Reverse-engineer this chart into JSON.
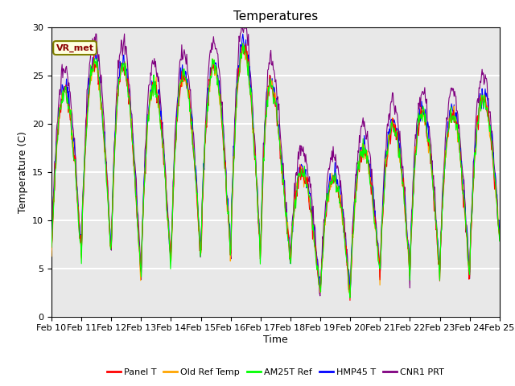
{
  "title": "Temperatures",
  "xlabel": "Time",
  "ylabel": "Temperature (C)",
  "ylim": [
    0,
    30
  ],
  "xlim": [
    0,
    15
  ],
  "x_tick_labels": [
    "Feb 10",
    "Feb 11",
    "Feb 12",
    "Feb 13",
    "Feb 14",
    "Feb 15",
    "Feb 16",
    "Feb 17",
    "Feb 18",
    "Feb 19",
    "Feb 20",
    "Feb 21",
    "Feb 22",
    "Feb 23",
    "Feb 24",
    "Feb 25"
  ],
  "annotation_text": "VR_met",
  "series_colors": [
    "red",
    "orange",
    "lime",
    "blue",
    "purple"
  ],
  "series_labels": [
    "Panel T",
    "Old Ref Temp",
    "AM25T Ref",
    "HMP45 T",
    "CNR1 PRT"
  ],
  "background_color": "#e8e8e8",
  "grid_color": "white",
  "title_fontsize": 11,
  "label_fontsize": 9,
  "tick_fontsize": 8
}
